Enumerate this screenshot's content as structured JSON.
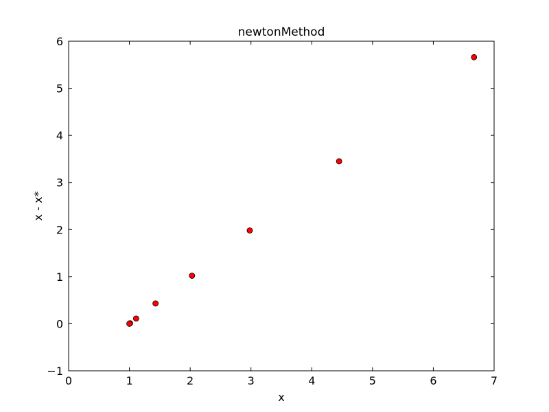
{
  "chart_data": {
    "type": "scatter",
    "title": "newtonMethod",
    "xlabel": "x",
    "ylabel": "x - x*",
    "xlim": [
      0,
      7
    ],
    "ylim": [
      -1,
      6
    ],
    "xticks": [
      0,
      1,
      2,
      3,
      4,
      5,
      6,
      7
    ],
    "yticks": [
      -1,
      0,
      1,
      2,
      3,
      4,
      5,
      6
    ],
    "xtick_labels": [
      "0",
      "1",
      "2",
      "3",
      "4",
      "5",
      "6",
      "7"
    ],
    "ytick_labels": [
      "−1",
      "0",
      "1",
      "2",
      "3",
      "4",
      "5",
      "6"
    ],
    "grid": false,
    "marker_color": "#ff0000",
    "marker_edge_color": "#000000",
    "points": [
      {
        "x": 6.67,
        "y": 5.66
      },
      {
        "x": 4.45,
        "y": 3.45
      },
      {
        "x": 2.98,
        "y": 1.98
      },
      {
        "x": 2.03,
        "y": 1.02
      },
      {
        "x": 1.43,
        "y": 0.43
      },
      {
        "x": 1.11,
        "y": 0.11
      },
      {
        "x": 1.01,
        "y": 0.01
      },
      {
        "x": 1.0,
        "y": 0.0
      }
    ]
  }
}
